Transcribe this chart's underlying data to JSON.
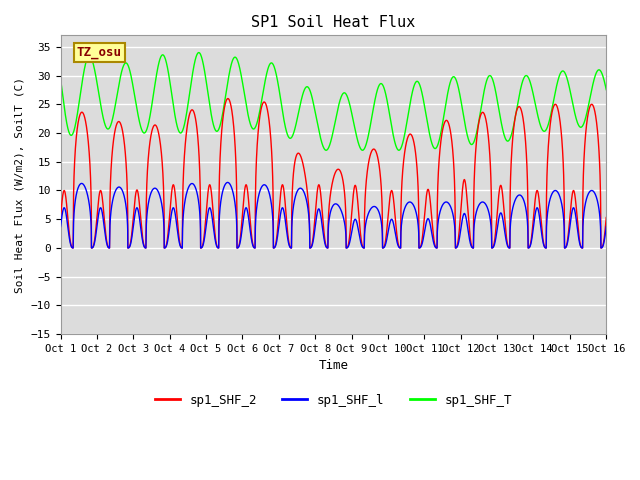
{
  "title": "SP1 Soil Heat Flux",
  "xlabel": "Time",
  "ylabel": "Soil Heat Flux (W/m2), SoilT (C)",
  "ylim": [
    -15,
    37
  ],
  "yticks": [
    -15,
    -10,
    -5,
    0,
    5,
    10,
    15,
    20,
    25,
    30,
    35
  ],
  "xlim": [
    0,
    15
  ],
  "xtick_labels": [
    "Oct 1",
    "Oct 2",
    "Oct 3",
    "Oct 4",
    "Oct 5",
    "Oct 6",
    "Oct 7",
    "Oct 8",
    "Oct 9",
    "Oct 10",
    "Oct 11",
    "Oct 12",
    "Oct 13",
    "Oct 14",
    "Oct 15",
    "Oct 16"
  ],
  "xtick_positions": [
    0,
    1,
    2,
    3,
    4,
    5,
    6,
    7,
    8,
    9,
    10,
    11,
    12,
    13,
    14,
    15
  ],
  "color_red": "#FF0000",
  "color_blue": "#0000FF",
  "color_green": "#00FF00",
  "bg_color": "#DCDCDC",
  "fig_bg": "#FFFFFF",
  "tz_label": "TZ_osu",
  "legend_labels": [
    "sp1_SHF_2",
    "sp1_SHF_l",
    "sp1_SHF_T"
  ],
  "n_days": 15,
  "points_per_day": 240,
  "red_pos_amp": [
    26,
    22,
    22,
    21,
    26,
    26,
    25,
    10,
    16,
    18,
    21,
    23,
    24,
    25,
    25
  ],
  "red_neg_amp": [
    10,
    10,
    10,
    11,
    11,
    11,
    11,
    11,
    11,
    10,
    10,
    12,
    11,
    10,
    10
  ],
  "blue_pos_amp": [
    13,
    10,
    11,
    10,
    12,
    11,
    11,
    10,
    6,
    8,
    8,
    8,
    8,
    10,
    10
  ],
  "blue_neg_amp": [
    7,
    7,
    7,
    7,
    7,
    7,
    7,
    7,
    5,
    5,
    5,
    6,
    6,
    7,
    7
  ],
  "green_mid": [
    27,
    27,
    26,
    27,
    27,
    27,
    26,
    22,
    22,
    23,
    23,
    24,
    24,
    25,
    26
  ],
  "green_amp": [
    8,
    6,
    6,
    7,
    7,
    6,
    6,
    5,
    5,
    6,
    6,
    6,
    6,
    5,
    5
  ],
  "peak_phase": 0.35,
  "green_phase": 0.55,
  "sharpness": 3.0
}
